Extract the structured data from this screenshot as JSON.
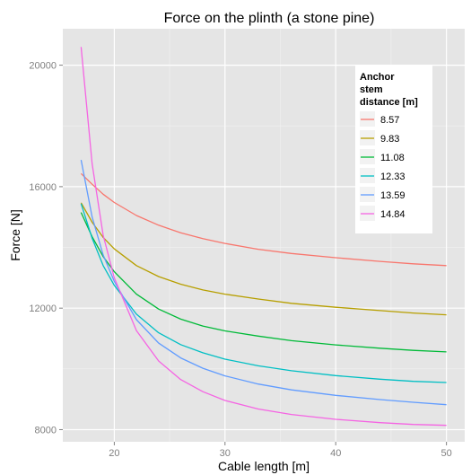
{
  "chart_data": {
    "type": "line",
    "title": "Force on the plinth (a stone pine)",
    "xlabel": "Cable length [m]",
    "ylabel": "Force [N]",
    "xlim": [
      15.35,
      51.65
    ],
    "ylim": [
      7600,
      21200
    ],
    "x_ticks": [
      20,
      30,
      40,
      50
    ],
    "y_ticks": [
      8000,
      12000,
      16000,
      20000
    ],
    "x_tick_labels": [
      "20",
      "30",
      "40",
      "50"
    ],
    "y_tick_labels": [
      "8000",
      "12000",
      "16000",
      "20000"
    ],
    "grid": true,
    "legend": {
      "title_lines": [
        "Anchor",
        "stem",
        "distance [m]"
      ],
      "placement": "top-right"
    },
    "x": [
      17,
      18,
      19,
      20,
      22,
      24,
      26,
      28,
      30,
      33,
      36,
      40,
      44,
      47,
      50
    ],
    "series": [
      {
        "name": "8.57",
        "color": "#F8766D",
        "values": [
          16430,
          16080,
          15750,
          15480,
          15050,
          14730,
          14480,
          14290,
          14130,
          13940,
          13800,
          13660,
          13540,
          13460,
          13400
        ]
      },
      {
        "name": "9.83",
        "color": "#B79F00",
        "values": [
          15470,
          14830,
          14330,
          13950,
          13400,
          13040,
          12790,
          12600,
          12460,
          12300,
          12160,
          12030,
          11920,
          11840,
          11780
        ]
      },
      {
        "name": "11.08",
        "color": "#00BA38",
        "values": [
          15150,
          14350,
          13700,
          13200,
          12460,
          11970,
          11640,
          11410,
          11250,
          11080,
          10930,
          10790,
          10680,
          10610,
          10560
        ]
      },
      {
        "name": "12.33",
        "color": "#00BFC4",
        "values": [
          15440,
          14300,
          13400,
          12750,
          11800,
          11190,
          10800,
          10530,
          10320,
          10100,
          9940,
          9780,
          9660,
          9590,
          9550
        ]
      },
      {
        "name": "13.59",
        "color": "#619CFF",
        "values": [
          16880,
          15000,
          13750,
          12880,
          11620,
          10850,
          10360,
          10020,
          9770,
          9500,
          9310,
          9130,
          8990,
          8900,
          8820
        ]
      },
      {
        "name": "14.84",
        "color": "#F564E3",
        "values": [
          20600,
          16750,
          14400,
          13000,
          11260,
          10260,
          9650,
          9250,
          8960,
          8680,
          8500,
          8340,
          8230,
          8170,
          8140
        ]
      }
    ]
  }
}
